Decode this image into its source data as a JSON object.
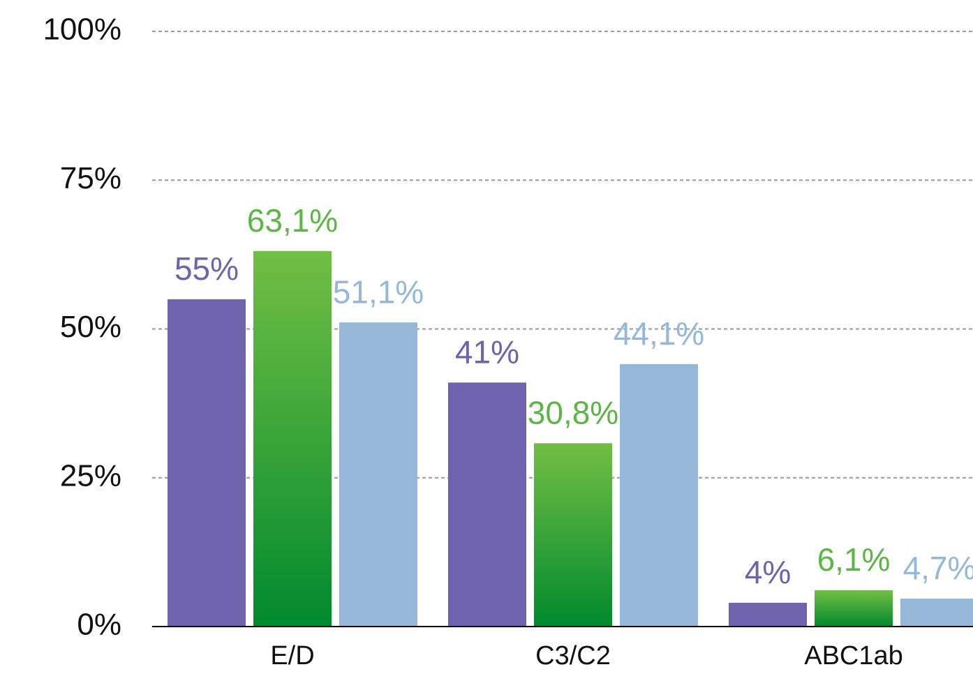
{
  "chart_data": {
    "type": "bar",
    "categories": [
      "E/D",
      "C3/C2",
      "ABC1ab"
    ],
    "series": [
      {
        "color": "#6f63ae",
        "values": [
          55,
          41,
          4
        ],
        "value_labels": [
          "55%",
          "41%",
          "4%"
        ]
      },
      {
        "color": "#5cb646",
        "gradient": [
          "#72be44",
          "#008a2e"
        ],
        "values": [
          63.1,
          30.8,
          6.1
        ],
        "value_labels": [
          "63,1%",
          "30,8%",
          "6,1%"
        ]
      },
      {
        "color": "#95b8d9",
        "values": [
          51.1,
          44.1,
          4.7
        ],
        "value_labels": [
          "51,1%",
          "44,1%",
          "4,7%"
        ]
      }
    ],
    "ylim": [
      0,
      100
    ],
    "yticks": [
      {
        "value": 0,
        "label": "0%"
      },
      {
        "value": 25,
        "label": "25%"
      },
      {
        "value": 50,
        "label": "50%"
      },
      {
        "value": 75,
        "label": "75%"
      },
      {
        "value": 100,
        "label": "100%"
      }
    ],
    "grid": true
  }
}
